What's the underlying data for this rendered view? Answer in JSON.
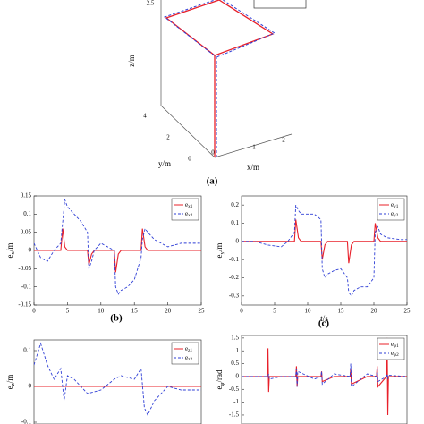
{
  "chart_data": [
    {
      "type": "3d",
      "caption": "(a)",
      "zlabel": "z/m",
      "ylabel": "y/m",
      "xlabel": "x/m",
      "zticks": [
        2.5
      ],
      "yticks": [
        4,
        2,
        0
      ],
      "xticks": [
        0,
        1,
        2
      ]
    },
    {
      "type": "line",
      "caption": "(b)",
      "ylabel": "ex/m",
      "xlim": [
        0,
        25
      ],
      "ylim": [
        -0.15,
        0.15
      ],
      "xticks": [
        0,
        5,
        10,
        15,
        20,
        25
      ],
      "yticks": [
        0.15,
        0.1,
        0.05,
        0,
        -0.05,
        -0.1,
        -0.15
      ],
      "x": [
        0,
        1,
        2,
        3,
        4,
        4.3,
        4.6,
        5,
        6,
        7,
        8,
        8.2,
        8.6,
        9,
        10,
        11,
        12,
        12.2,
        12.6,
        13,
        14,
        15,
        16,
        16.2,
        16.6,
        17,
        18,
        20,
        22,
        24,
        25
      ],
      "series": [
        {
          "name": "ex1",
          "color": "#e8202a",
          "dash": false,
          "values": [
            0,
            0,
            0,
            0,
            0,
            0.06,
            0.01,
            0,
            0,
            0,
            0,
            -0.04,
            -0.01,
            0,
            0,
            0,
            0,
            -0.06,
            -0.01,
            0,
            0,
            0,
            0,
            0.06,
            0.01,
            0,
            0,
            0,
            0,
            0,
            0
          ]
        },
        {
          "name": "ex2",
          "color": "#2f3fd6",
          "dash": true,
          "values": [
            0.02,
            -0.02,
            -0.03,
            0,
            0.02,
            0.08,
            0.14,
            0.12,
            0.1,
            0.08,
            0.05,
            -0.05,
            -0.03,
            0,
            0.02,
            0.01,
            0,
            -0.1,
            -0.12,
            -0.11,
            -0.1,
            -0.08,
            -0.02,
            0.03,
            0.06,
            0.05,
            0.03,
            0.01,
            0.02,
            0.02,
            0.02
          ]
        }
      ]
    },
    {
      "type": "line",
      "caption": "(c)",
      "ylabel": "ey/m",
      "xlabel": "t/s",
      "xlim": [
        0,
        25
      ],
      "ylim": [
        -0.35,
        0.25
      ],
      "xticks": [
        0,
        5,
        10,
        15,
        20,
        25
      ],
      "yticks": [
        0.2,
        0.1,
        0,
        -0.1,
        -0.2,
        -0.3
      ],
      "x": [
        0,
        2,
        4,
        6,
        7,
        8,
        8.2,
        8.6,
        9,
        10,
        11,
        12,
        12.2,
        12.6,
        13,
        14,
        15,
        16,
        16.2,
        16.6,
        17,
        18,
        19,
        20,
        20.2,
        20.6,
        21,
        22,
        24,
        25
      ],
      "series": [
        {
          "name": "ey1",
          "color": "#e8202a",
          "dash": false,
          "values": [
            0,
            0,
            0,
            0,
            0,
            0,
            0.12,
            0.02,
            0,
            0,
            0,
            0,
            -0.1,
            -0.02,
            0,
            0,
            0,
            0,
            -0.12,
            -0.02,
            0,
            0,
            0,
            0,
            0.1,
            0.02,
            0,
            0,
            0,
            0
          ]
        },
        {
          "name": "ey2",
          "color": "#2f3fd6",
          "dash": true,
          "values": [
            0,
            0,
            -0.02,
            -0.03,
            0,
            0.05,
            0.2,
            0.17,
            0.15,
            0.15,
            0.15,
            0.12,
            -0.15,
            -0.2,
            -0.18,
            -0.16,
            -0.15,
            -0.2,
            -0.28,
            -0.3,
            -0.27,
            -0.25,
            -0.25,
            -0.2,
            0.05,
            0.08,
            0.04,
            0.02,
            0.01,
            0.01
          ]
        }
      ]
    },
    {
      "type": "line",
      "ylabel": "ez/m",
      "xlim": [
        0,
        25
      ],
      "ylim": [
        -0.105,
        0.13
      ],
      "yticks": [
        0.1,
        0,
        -0.1
      ],
      "x": [
        0,
        1,
        2,
        3,
        4,
        4.5,
        5,
        6,
        8,
        10,
        12,
        13,
        15,
        16,
        16.5,
        17,
        18,
        20,
        22,
        25
      ],
      "series": [
        {
          "name": "ez1",
          "color": "#e8202a",
          "dash": false,
          "values": [
            0,
            0,
            0,
            0,
            0,
            0,
            0,
            0,
            0,
            0,
            0,
            0,
            0,
            0,
            0,
            0,
            0,
            0,
            0,
            0
          ]
        },
        {
          "name": "ez2",
          "color": "#2f3fd6",
          "dash": true,
          "values": [
            0.06,
            0.12,
            0.06,
            0.02,
            0.05,
            -0.04,
            0.03,
            0.02,
            -0.02,
            -0.01,
            0.02,
            0.03,
            0.02,
            0.05,
            -0.06,
            -0.08,
            -0.04,
            0,
            -0.01,
            -0.01
          ]
        }
      ]
    },
    {
      "type": "line",
      "ylabel": "eφ/rad",
      "xlim": [
        0,
        25
      ],
      "ylim": [
        -1.85,
        1.6
      ],
      "yticks": [
        1.5,
        1,
        0.5,
        0,
        -0.5,
        -1,
        -1.5
      ],
      "x": [
        0,
        3.9,
        4,
        4.1,
        4.2,
        6,
        8.2,
        8.3,
        8.4,
        8.5,
        11,
        12,
        12.1,
        12.2,
        14,
        16.4,
        16.5,
        16.6,
        19,
        20.4,
        20.5,
        20.6,
        21.9,
        22,
        22.1,
        22.2,
        25
      ],
      "series": [
        {
          "name": "eφ1",
          "color": "#e8202a",
          "dash": false,
          "values": [
            0,
            0,
            1.1,
            -0.6,
            0,
            0,
            0,
            0.4,
            -0.4,
            0,
            0,
            0,
            0.2,
            -0.2,
            0,
            0,
            0.3,
            -0.3,
            0,
            0,
            0.4,
            -0.4,
            0,
            1.5,
            -1.5,
            0,
            0
          ]
        },
        {
          "name": "eφ2",
          "color": "#2f3fd6",
          "dash": true,
          "values": [
            0,
            0,
            0,
            0.1,
            -0.1,
            0,
            0,
            0.3,
            -0.4,
            0.2,
            -0.1,
            0,
            0.2,
            -0.3,
            0.1,
            0,
            0.5,
            -0.4,
            0.1,
            0,
            0.3,
            -0.2,
            0,
            0.1,
            -0.1,
            0.05,
            0
          ]
        }
      ]
    }
  ]
}
